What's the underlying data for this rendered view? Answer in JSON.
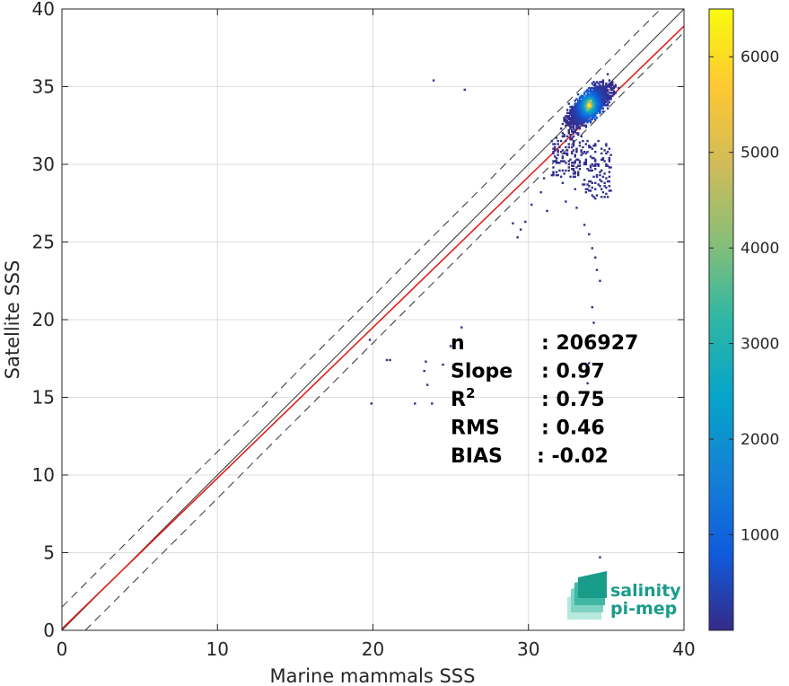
{
  "chart_data": {
    "type": "heatmap",
    "xlabel": "Marine mammals SSS",
    "ylabel": "Satellite SSS",
    "xlim": [
      0,
      40
    ],
    "ylim": [
      0,
      40
    ],
    "x_ticks": [
      0,
      10,
      20,
      30,
      40
    ],
    "y_ticks": [
      0,
      5,
      10,
      15,
      20,
      25,
      30,
      35,
      40
    ],
    "grid": true,
    "lines": {
      "identity": {
        "slope": 1,
        "intercept": 0,
        "color": "#333333"
      },
      "upper_bound": {
        "slope": 1,
        "intercept": 1.5,
        "dashed": true,
        "color": "#333333"
      },
      "lower_bound": {
        "slope": 1,
        "intercept": -1.5,
        "dashed": true,
        "color": "#333333"
      },
      "regression": {
        "slope": 0.97,
        "intercept": 0.1,
        "color": "#e0201c"
      }
    },
    "density_core": {
      "x": 33.9,
      "y": 33.8,
      "peak_count": 6500
    },
    "scattered_bins": [
      [
        23.9,
        35.4
      ],
      [
        25.9,
        34.8
      ],
      [
        29.0,
        26.2
      ],
      [
        29.3,
        25.3
      ],
      [
        29.5,
        25.8
      ],
      [
        29.8,
        26.3
      ],
      [
        30.2,
        27.4
      ],
      [
        30.8,
        28.2
      ],
      [
        31.2,
        27.0
      ],
      [
        32.4,
        27.6
      ],
      [
        33.1,
        27.2
      ],
      [
        33.6,
        26.1
      ],
      [
        33.9,
        25.5
      ],
      [
        34.1,
        24.6
      ],
      [
        34.3,
        24.0
      ],
      [
        34.4,
        23.2
      ],
      [
        34.6,
        22.5
      ],
      [
        34.1,
        20.8
      ],
      [
        34.2,
        19.8
      ],
      [
        34.0,
        18.9
      ],
      [
        33.9,
        17.2
      ],
      [
        33.7,
        16.6
      ],
      [
        33.8,
        15.9
      ],
      [
        25.7,
        19.5
      ],
      [
        25.0,
        18.3
      ],
      [
        24.5,
        17.1
      ],
      [
        23.3,
        16.7
      ],
      [
        23.5,
        15.8
      ],
      [
        23.8,
        14.6
      ],
      [
        22.7,
        14.6
      ],
      [
        21.1,
        17.4
      ],
      [
        20.9,
        17.4
      ],
      [
        19.8,
        18.7
      ],
      [
        19.9,
        14.6
      ],
      [
        23.4,
        17.3
      ],
      [
        34.6,
        4.7
      ],
      [
        31.0,
        29.1
      ],
      [
        31.6,
        29.8
      ],
      [
        32.2,
        28.8
      ],
      [
        33.0,
        28.4
      ]
    ],
    "colorbar": {
      "min": 0,
      "max": 6500,
      "ticks": [
        1000,
        2000,
        3000,
        4000,
        5000,
        6000
      ],
      "colormap": [
        "#352a87",
        "#0f5cdd",
        "#1481d6",
        "#06a4ca",
        "#2eb7a4",
        "#87bf77",
        "#d1bb59",
        "#fec832",
        "#f9fb0e"
      ]
    },
    "stats": [
      {
        "label": "n",
        "value": ": 206927"
      },
      {
        "label": "Slope",
        "value": ": 0.97"
      },
      {
        "label": "R",
        "sup": "2",
        "value": ": 0.75"
      },
      {
        "label": "RMS",
        "value": ": 0.46"
      },
      {
        "label": "BIAS",
        "value": ": -0.02"
      }
    ]
  },
  "logo": {
    "line1": "salinity",
    "line2": "pi-mep",
    "colors": [
      "#1a9c8a",
      "#3fb8a4",
      "#7fd3c2",
      "#b6e8dc"
    ]
  }
}
